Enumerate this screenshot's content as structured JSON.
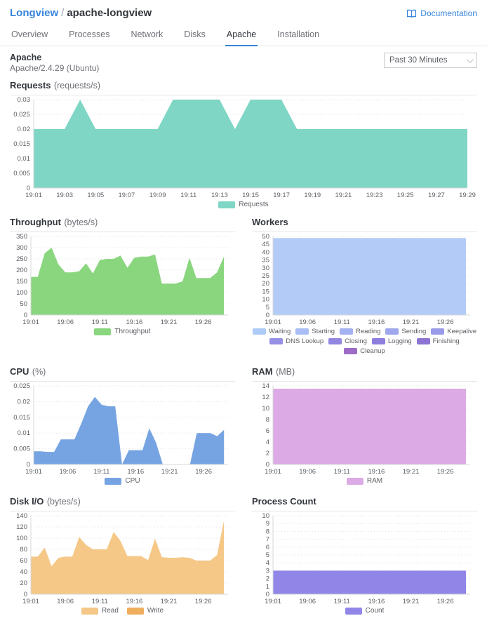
{
  "header": {
    "app": "Longview",
    "separator": "/",
    "entity": "apache-longview",
    "documentation": "Documentation"
  },
  "tabs": [
    "Overview",
    "Processes",
    "Network",
    "Disks",
    "Apache",
    "Installation"
  ],
  "active_tab": "Apache",
  "panel": {
    "title": "Apache",
    "version": "Apache/2.4.29 (Ubuntu)"
  },
  "time_select": {
    "value": "Past 30 Minutes"
  },
  "colors": {
    "accent": "#3683dc"
  },
  "chart_data": [
    {
      "id": "requests",
      "type": "area",
      "title": "Requests",
      "unit": "(requests/s)",
      "x_range": [
        "19:01",
        "19:29"
      ],
      "axis_span_min": 28,
      "x_interval_min": 1,
      "x_ticks": [
        "19:01",
        "19:03",
        "19:05",
        "19:07",
        "19:09",
        "19:11",
        "19:13",
        "19:15",
        "19:17",
        "19:19",
        "19:21",
        "19:23",
        "19:25",
        "19:27",
        "19:29"
      ],
      "ylim": [
        0,
        0.03
      ],
      "y_ticks": [
        0,
        0.005,
        0.01,
        0.015,
        0.02,
        0.025,
        0.03
      ],
      "grid": "dotted-horizontal",
      "legend_position": "bottom",
      "series": [
        {
          "name": "Requests",
          "color": "#7fd6c5",
          "values": [
            0.02,
            0.02,
            0.02,
            0.03,
            0.02,
            0.02,
            0.02,
            0.02,
            0.02,
            0.03,
            0.03,
            0.03,
            0.03,
            0.02,
            0.03,
            0.03,
            0.03,
            0.02,
            0.02,
            0.02,
            0.02,
            0.02,
            0.02,
            0.02,
            0.02,
            0.02,
            0.02,
            0.02,
            0.02
          ]
        }
      ]
    },
    {
      "id": "throughput",
      "type": "area",
      "title": "Throughput",
      "unit": "(bytes/s)",
      "x_range": [
        "19:01",
        "19:29"
      ],
      "axis_span_min": 28.6,
      "x_interval_min": 1,
      "x_ticks": [
        "19:01",
        "19:06",
        "19:11",
        "19:16",
        "19:21",
        "19:26"
      ],
      "ylim": [
        0,
        350
      ],
      "y_ticks": [
        0,
        50,
        100,
        150,
        200,
        250,
        300,
        350
      ],
      "grid": "dotted-horizontal",
      "legend_position": "bottom",
      "series": [
        {
          "name": "Throughput",
          "color": "#8ad67f",
          "values": [
            170,
            170,
            275,
            300,
            225,
            190,
            190,
            195,
            230,
            185,
            245,
            250,
            250,
            265,
            210,
            255,
            260,
            260,
            270,
            140,
            140,
            140,
            150,
            255,
            165,
            165,
            165,
            190,
            260
          ]
        }
      ]
    },
    {
      "id": "workers",
      "type": "area",
      "title": "Workers",
      "unit": "",
      "x_range": [
        "19:01",
        "19:29"
      ],
      "axis_span_min": 28.6,
      "x_interval_min": 1,
      "x_ticks": [
        "19:01",
        "19:06",
        "19:11",
        "19:16",
        "19:21",
        "19:26"
      ],
      "ylim": [
        0,
        50
      ],
      "y_ticks": [
        0,
        5,
        10,
        15,
        20,
        25,
        30,
        35,
        40,
        45,
        50
      ],
      "grid": "dotted-horizontal",
      "legend_position": "bottom",
      "series": [
        {
          "name": "Waiting",
          "color": "#b3cbf7",
          "values": [
            49,
            49,
            49,
            49,
            49,
            49,
            49,
            49,
            49,
            49,
            49,
            49,
            49,
            49,
            49,
            49,
            49,
            49,
            49,
            49,
            49,
            49,
            49,
            49,
            49,
            49,
            49,
            49,
            49
          ]
        }
      ],
      "legend": [
        {
          "label": "Waiting",
          "color": "#aecbf7"
        },
        {
          "label": "Starting",
          "color": "#a8bef4"
        },
        {
          "label": "Reading",
          "color": "#a3b2f0"
        },
        {
          "label": "Sending",
          "color": "#9ea6ec"
        },
        {
          "label": "Keepalive",
          "color": "#999be9"
        },
        {
          "label": "DNS Lookup",
          "color": "#9590e5"
        },
        {
          "label": "Closing",
          "color": "#9187e1"
        },
        {
          "label": "Logging",
          "color": "#8d7edd"
        },
        {
          "label": "Finishing",
          "color": "#8d74d2"
        },
        {
          "label": "Cleanup",
          "color": "#9c6cc6"
        }
      ]
    },
    {
      "id": "cpu",
      "type": "area",
      "title": "CPU",
      "unit": "(%)",
      "x_range": [
        "19:01",
        "19:29"
      ],
      "axis_span_min": 28.6,
      "x_interval_min": 1,
      "x_ticks": [
        "19:01",
        "19:06",
        "19:11",
        "19:16",
        "19:21",
        "19:26"
      ],
      "ylim": [
        0,
        0.025
      ],
      "y_ticks": [
        0,
        0.005,
        0.01,
        0.015,
        0.02,
        0.025
      ],
      "grid": "dotted-horizontal",
      "legend_position": "bottom",
      "series": [
        {
          "name": "CPU",
          "color": "#76a4e2",
          "values": [
            0.0042,
            0.0042,
            0.004,
            0.004,
            0.008,
            0.008,
            0.008,
            0.013,
            0.0185,
            0.0215,
            0.019,
            0.0185,
            0.0185,
            0,
            0.0045,
            0.0045,
            0.0045,
            0.0115,
            0.007,
            0,
            0,
            0,
            0,
            0,
            0.01,
            0.01,
            0.01,
            0.009,
            0.011
          ]
        }
      ]
    },
    {
      "id": "ram",
      "type": "area",
      "title": "RAM",
      "unit": "(MB)",
      "x_range": [
        "19:01",
        "19:29"
      ],
      "axis_span_min": 28.6,
      "x_interval_min": 1,
      "x_ticks": [
        "19:01",
        "19:06",
        "19:11",
        "19:16",
        "19:21",
        "19:26"
      ],
      "ylim": [
        0,
        14
      ],
      "y_ticks": [
        0,
        2,
        4,
        6,
        8,
        10,
        12,
        14
      ],
      "grid": "dotted-horizontal",
      "legend_position": "bottom",
      "series": [
        {
          "name": "RAM",
          "color": "#dcaae4",
          "values": [
            13.5,
            13.5,
            13.5,
            13.5,
            13.5,
            13.5,
            13.5,
            13.5,
            13.5,
            13.5,
            13.5,
            13.5,
            13.5,
            13.5,
            13.5,
            13.5,
            13.5,
            13.5,
            13.5,
            13.5,
            13.5,
            13.5,
            13.5,
            13.5,
            13.5,
            13.5,
            13.5,
            13.5,
            13.5
          ]
        }
      ]
    },
    {
      "id": "disk-io",
      "type": "area",
      "title": "Disk I/O",
      "unit": "(bytes/s)",
      "x_range": [
        "19:01",
        "19:29"
      ],
      "axis_span_min": 28.6,
      "x_interval_min": 1,
      "x_ticks": [
        "19:01",
        "19:06",
        "19:11",
        "19:16",
        "19:21",
        "19:26"
      ],
      "ylim": [
        0,
        140
      ],
      "y_ticks": [
        0,
        20,
        40,
        60,
        80,
        100,
        120,
        140
      ],
      "grid": "dotted-horizontal",
      "legend_position": "bottom",
      "series": [
        {
          "name": "Read",
          "color": "#f5c888",
          "values": [
            67,
            67,
            83,
            50,
            65,
            67,
            67,
            102,
            88,
            80,
            80,
            80,
            111,
            95,
            68,
            68,
            68,
            61,
            99,
            66,
            65,
            65,
            66,
            65,
            60,
            60,
            60,
            70,
            131
          ]
        },
        {
          "name": "Write",
          "color": "#efae5e",
          "values": [
            0,
            0,
            0,
            0,
            0,
            0,
            0,
            0,
            0,
            0,
            0,
            0,
            0,
            0,
            0,
            0,
            0,
            0,
            0,
            0,
            0,
            0,
            0,
            0,
            0,
            0,
            0,
            0,
            0
          ]
        }
      ]
    },
    {
      "id": "process-count",
      "type": "area",
      "title": "Process Count",
      "unit": "",
      "x_range": [
        "19:01",
        "19:29"
      ],
      "axis_span_min": 28.6,
      "x_interval_min": 1,
      "x_ticks": [
        "19:01",
        "19:06",
        "19:11",
        "19:16",
        "19:21",
        "19:26"
      ],
      "ylim": [
        0,
        10
      ],
      "y_ticks": [
        0,
        1,
        2,
        3,
        4,
        5,
        6,
        7,
        8,
        9,
        10
      ],
      "grid": "dotted-horizontal",
      "legend_position": "bottom",
      "series": [
        {
          "name": "Count",
          "color": "#9186e8",
          "values": [
            3,
            3,
            3,
            3,
            3,
            3,
            3,
            3,
            3,
            3,
            3,
            3,
            3,
            3,
            3,
            3,
            3,
            3,
            3,
            3,
            3,
            3,
            3,
            3,
            3,
            3,
            3,
            3,
            3
          ]
        }
      ]
    }
  ]
}
